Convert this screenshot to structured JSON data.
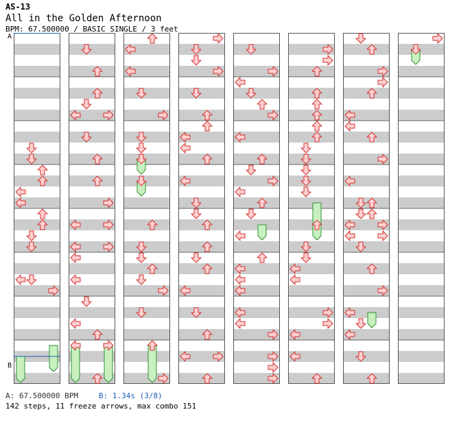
{
  "header": {
    "id": "AS-13",
    "title": "All in the Golden Afternoon",
    "meta": "BPM: 67.500000 / BASIC SINGLE / 3 feet"
  },
  "markers": {
    "a": "A",
    "b": "B"
  },
  "footer": {
    "bpm_a": "A: 67.500000 BPM",
    "bpm_b": "B: 1.34s (3/8)",
    "stats": "142 steps, 11 freeze arrows, max combo 151"
  },
  "colors": {
    "arrow_fill": "#ffd0d0",
    "arrow_stroke": "#d03030",
    "freeze_fill": "#c8f0c0",
    "freeze_stroke": "#309030",
    "stripe": "#cccccc",
    "column_bg": "#ffffff",
    "marker_line": "#1a5fb4"
  },
  "chart_data": {
    "type": "step_chart",
    "columns": 8,
    "rows_per_column": 32,
    "lanes": [
      "left",
      "down",
      "up",
      "right"
    ],
    "notes": [
      [
        [
          10,
          "D"
        ],
        [
          11,
          "D"
        ],
        [
          12,
          "U"
        ],
        [
          13,
          "U"
        ],
        [
          14,
          "L"
        ],
        [
          15,
          "L"
        ],
        [
          16,
          "U"
        ],
        [
          17,
          "U"
        ],
        [
          18,
          "D"
        ],
        [
          19,
          "D"
        ],
        [
          22,
          "L"
        ],
        [
          22,
          "D"
        ],
        [
          23,
          "R"
        ]
      ],
      [
        [
          1,
          "D"
        ],
        [
          3,
          "U"
        ],
        [
          5,
          "U"
        ],
        [
          6,
          "D"
        ],
        [
          7,
          "L"
        ],
        [
          7,
          "R"
        ],
        [
          9,
          "D"
        ],
        [
          11,
          "U"
        ],
        [
          13,
          "U"
        ],
        [
          15,
          "R"
        ],
        [
          17,
          "L"
        ],
        [
          17,
          "R"
        ],
        [
          19,
          "L"
        ],
        [
          19,
          "R"
        ],
        [
          20,
          "L"
        ],
        [
          22,
          "L"
        ],
        [
          24,
          "D"
        ],
        [
          26,
          "L"
        ],
        [
          27,
          "U"
        ],
        [
          28,
          "L"
        ],
        [
          28,
          "R"
        ],
        [
          31,
          "U"
        ]
      ],
      [
        [
          0,
          "U"
        ],
        [
          1,
          "L"
        ],
        [
          3,
          "L"
        ],
        [
          5,
          "D"
        ],
        [
          7,
          "R"
        ],
        [
          9,
          "D"
        ],
        [
          10,
          "D"
        ],
        [
          11,
          "D"
        ],
        [
          13,
          "D"
        ],
        [
          17,
          "U"
        ],
        [
          19,
          "D"
        ],
        [
          20,
          "D"
        ],
        [
          21,
          "U"
        ],
        [
          22,
          "D"
        ],
        [
          23,
          "R"
        ],
        [
          25,
          "D"
        ],
        [
          28,
          "U"
        ],
        [
          31,
          "R"
        ]
      ],
      [
        [
          0,
          "R"
        ],
        [
          1,
          "D"
        ],
        [
          2,
          "D"
        ],
        [
          3,
          "R"
        ],
        [
          5,
          "D"
        ],
        [
          7,
          "U"
        ],
        [
          8,
          "U"
        ],
        [
          9,
          "L"
        ],
        [
          10,
          "L"
        ],
        [
          11,
          "U"
        ],
        [
          13,
          "L"
        ],
        [
          15,
          "D"
        ],
        [
          16,
          "D"
        ],
        [
          17,
          "U"
        ],
        [
          19,
          "U"
        ],
        [
          20,
          "D"
        ],
        [
          21,
          "U"
        ],
        [
          23,
          "L"
        ],
        [
          25,
          "D"
        ],
        [
          27,
          "U"
        ],
        [
          29,
          "L"
        ],
        [
          29,
          "R"
        ],
        [
          31,
          "U"
        ]
      ],
      [
        [
          1,
          "D"
        ],
        [
          3,
          "R"
        ],
        [
          4,
          "L"
        ],
        [
          5,
          "D"
        ],
        [
          6,
          "U"
        ],
        [
          7,
          "R"
        ],
        [
          9,
          "L"
        ],
        [
          11,
          "U"
        ],
        [
          12,
          "D"
        ],
        [
          13,
          "R"
        ],
        [
          14,
          "L"
        ],
        [
          15,
          "U"
        ],
        [
          16,
          "D"
        ],
        [
          18,
          "L"
        ],
        [
          20,
          "U"
        ],
        [
          21,
          "L"
        ],
        [
          22,
          "L"
        ],
        [
          23,
          "L"
        ],
        [
          25,
          "L"
        ],
        [
          26,
          "L"
        ],
        [
          27,
          "R"
        ],
        [
          29,
          "R"
        ],
        [
          30,
          "R"
        ],
        [
          31,
          "R"
        ]
      ],
      [
        [
          1,
          "R"
        ],
        [
          2,
          "R"
        ],
        [
          3,
          "U"
        ],
        [
          5,
          "U"
        ],
        [
          6,
          "U"
        ],
        [
          7,
          "U"
        ],
        [
          8,
          "U"
        ],
        [
          9,
          "U"
        ],
        [
          10,
          "D"
        ],
        [
          11,
          "D"
        ],
        [
          12,
          "D"
        ],
        [
          13,
          "D"
        ],
        [
          14,
          "D"
        ],
        [
          17,
          "U"
        ],
        [
          19,
          "D"
        ],
        [
          20,
          "D"
        ],
        [
          21,
          "L"
        ],
        [
          22,
          "L"
        ],
        [
          25,
          "R"
        ],
        [
          26,
          "R"
        ],
        [
          27,
          "L"
        ],
        [
          29,
          "L"
        ],
        [
          31,
          "U"
        ]
      ],
      [
        [
          0,
          "D"
        ],
        [
          1,
          "U"
        ],
        [
          3,
          "R"
        ],
        [
          4,
          "R"
        ],
        [
          5,
          "U"
        ],
        [
          7,
          "L"
        ],
        [
          8,
          "L"
        ],
        [
          9,
          "U"
        ],
        [
          11,
          "R"
        ],
        [
          13,
          "L"
        ],
        [
          15,
          "D"
        ],
        [
          15,
          "U"
        ],
        [
          16,
          "D"
        ],
        [
          16,
          "U"
        ],
        [
          17,
          "L"
        ],
        [
          17,
          "R"
        ],
        [
          18,
          "L"
        ],
        [
          18,
          "R"
        ],
        [
          19,
          "D"
        ],
        [
          21,
          "U"
        ],
        [
          23,
          "R"
        ],
        [
          25,
          "L"
        ],
        [
          26,
          "D"
        ],
        [
          27,
          "L"
        ],
        [
          29,
          "D"
        ],
        [
          31,
          "U"
        ]
      ],
      [
        [
          0,
          "R"
        ],
        [
          1,
          "D"
        ]
      ]
    ],
    "freezes": [
      [
        [
          28,
          30,
          "R"
        ],
        [
          29,
          31,
          "L"
        ]
      ],
      [
        [
          28,
          31,
          "L"
        ],
        [
          28,
          31,
          "R"
        ]
      ],
      [
        [
          11,
          12,
          "D"
        ],
        [
          13,
          14,
          "D"
        ],
        [
          28,
          31,
          "U"
        ]
      ],
      [],
      [
        [
          17,
          18,
          "U"
        ]
      ],
      [
        [
          15,
          18,
          "U"
        ]
      ],
      [
        [
          25,
          26,
          "U"
        ]
      ],
      [
        [
          1,
          2,
          "D"
        ]
      ]
    ]
  }
}
